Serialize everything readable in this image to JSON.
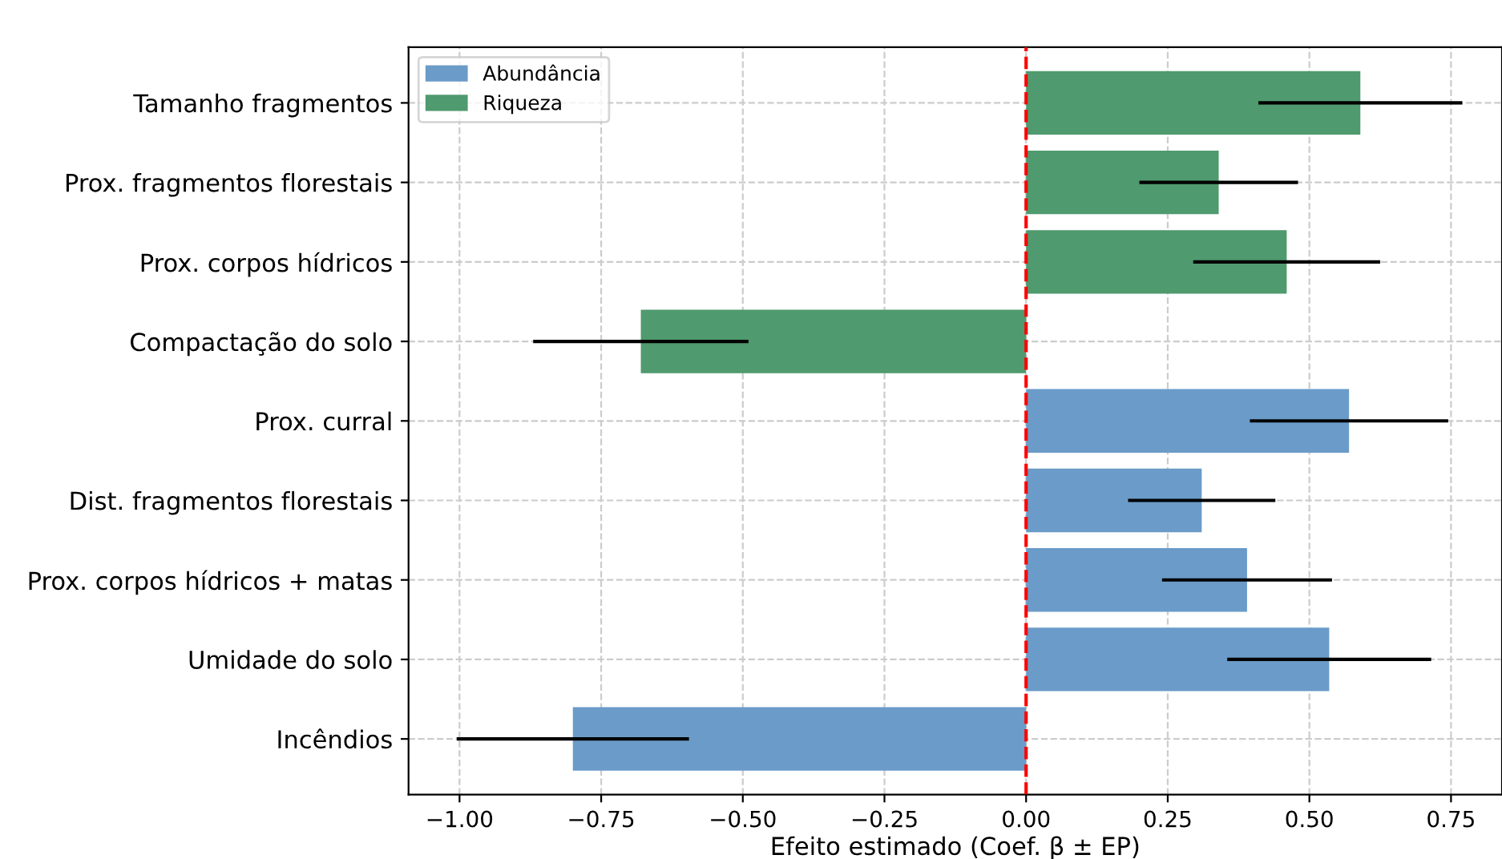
{
  "chart_data": {
    "type": "bar",
    "orientation": "horizontal",
    "xlabel": "Efeito estimado (Coef. β ± EP)",
    "categories": [
      "Tamanho fragmentos",
      "Prox. fragmentos florestais",
      "Prox. corpos hídricos",
      "Compactação do solo",
      "Prox. curral",
      "Dist. fragmentos florestais",
      "Prox. corpos hídricos + matas",
      "Umidade do solo",
      "Incêndios"
    ],
    "series": [
      {
        "name": "Abundância",
        "color": "#6b9bc8",
        "values": [
          null,
          null,
          null,
          null,
          0.57,
          0.31,
          0.39,
          0.535,
          -0.8
        ],
        "errors": [
          null,
          null,
          null,
          null,
          0.175,
          0.13,
          0.15,
          0.18,
          0.205
        ]
      },
      {
        "name": "Riqueza",
        "color": "#4f9a6e",
        "values": [
          0.59,
          0.34,
          0.46,
          -0.68,
          null,
          null,
          null,
          null,
          null
        ],
        "errors": [
          0.18,
          0.14,
          0.165,
          0.19,
          null,
          null,
          null,
          null,
          null
        ]
      }
    ],
    "xlim": [
      -1.09,
      0.84
    ],
    "xticks": [
      {
        "value": -1,
        "label": "−1.00"
      },
      {
        "value": -0.75,
        "label": "−0.75"
      },
      {
        "value": -0.5,
        "label": "−0.50"
      },
      {
        "value": -0.25,
        "label": "−0.25"
      },
      {
        "value": 0,
        "label": "0.00"
      },
      {
        "value": 0.25,
        "label": "0.25"
      },
      {
        "value": 0.5,
        "label": "0.50"
      },
      {
        "value": 0.75,
        "label": "0.75"
      }
    ],
    "ref_lines": [
      {
        "axis": "x",
        "value": 0,
        "color": "#ff0000",
        "line_style": "dashed"
      }
    ],
    "grid": true,
    "legend": "top left"
  }
}
